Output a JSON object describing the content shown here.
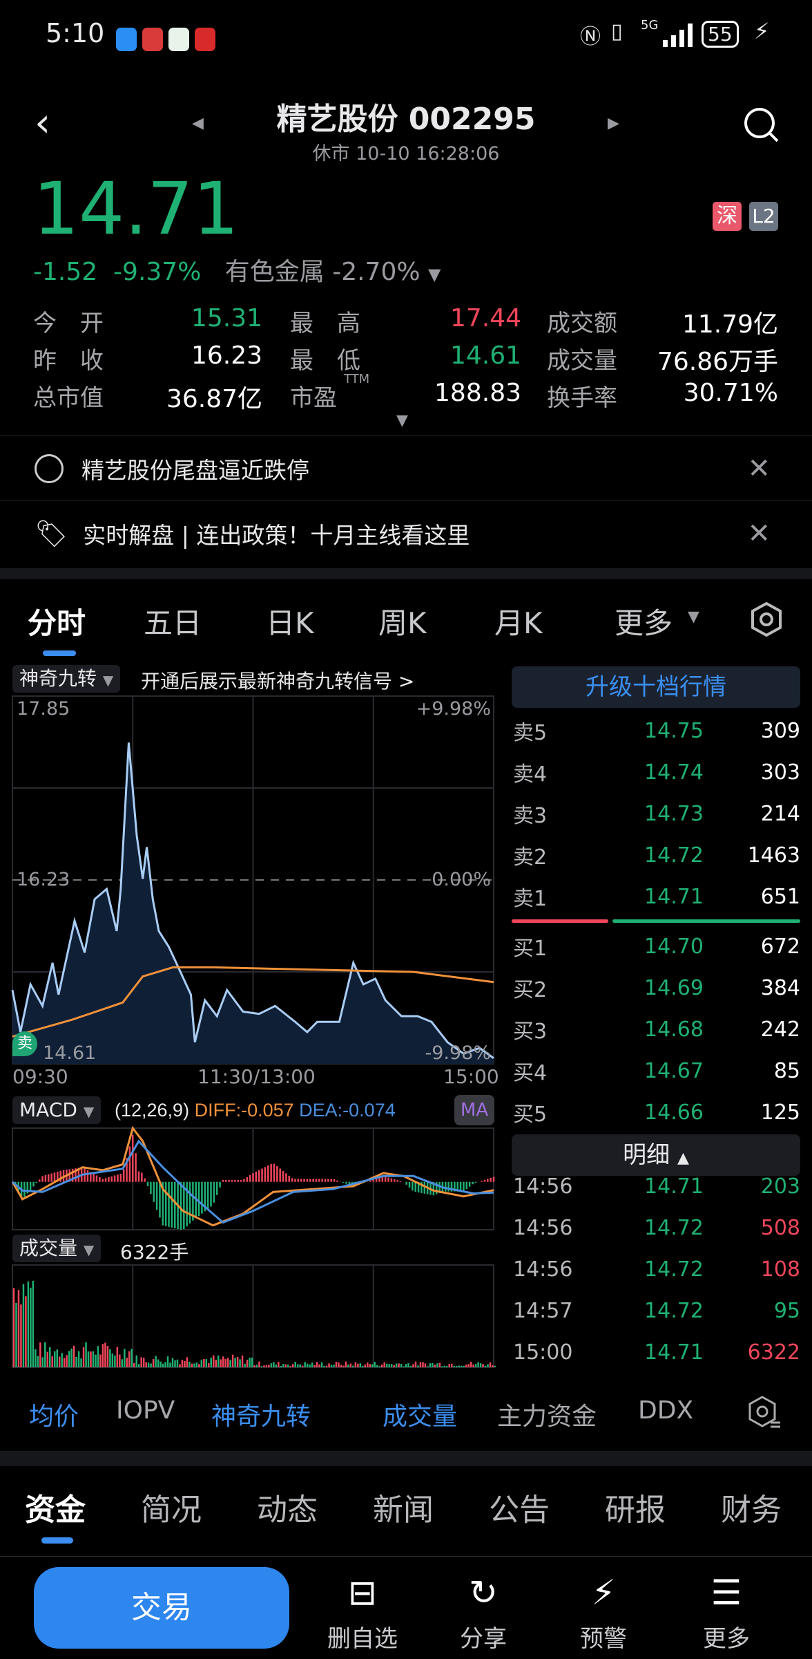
{
  "status_bar": {
    "time": "5:10",
    "battery": "55",
    "network": "5G"
  },
  "header": {
    "title": "精艺股份 002295",
    "subtitle": "休市 10-10 16:28:06",
    "exchange_badge": "深",
    "level_badge": "L2"
  },
  "quote": {
    "price": "14.71",
    "change": "-1.52",
    "change_pct": "-9.37%",
    "sector": "有色金属",
    "sector_pct": "-2.70%"
  },
  "stats": [
    [
      {
        "label": "今　开",
        "value": "15.31",
        "color": "green"
      },
      {
        "label": "最　高",
        "value": "17.44",
        "color": "red"
      },
      {
        "label": "成交额",
        "value": "11.79亿",
        "color": "white"
      }
    ],
    [
      {
        "label": "昨　收",
        "value": "16.23",
        "color": "white"
      },
      {
        "label": "最　低",
        "value": "14.61",
        "color": "green"
      },
      {
        "label": "成交量",
        "value": "76.86万手",
        "color": "white"
      }
    ],
    [
      {
        "label": "总市值",
        "value": "36.87亿",
        "color": "white"
      },
      {
        "label": "市盈",
        "sup": "TTM",
        "value": "188.83",
        "color": "white"
      },
      {
        "label": "换手率",
        "value": "30.71%",
        "color": "white"
      }
    ]
  ],
  "notices": [
    {
      "text": "精艺股份尾盘逼近跌停",
      "icon": "message-icon"
    },
    {
      "text": "实时解盘 | 连出政策！十月主线看这里",
      "icon": "tag-icon"
    }
  ],
  "chart_tabs": [
    "分时",
    "五日",
    "日K",
    "周K",
    "月K",
    "更多"
  ],
  "chart": {
    "indicator_label": "神奇九转",
    "promo": "开通后展示最新神奇九转信号 >",
    "y_top": "17.85",
    "y_mid": "16.23",
    "y_bot": "14.61",
    "pct_top": "+9.98%",
    "pct_mid": "0.00%",
    "pct_bot": "-9.98%",
    "x_labels": [
      "09:30",
      "11:30/13:00",
      "15:00"
    ],
    "sell_marker": "卖",
    "price_colors": {
      "line": "#a9cdf5",
      "avg": "#f0913a"
    },
    "price": [
      [
        0,
        15.26
      ],
      [
        4,
        14.89
      ],
      [
        9,
        15.31
      ],
      [
        15,
        15.12
      ],
      [
        20,
        15.5
      ],
      [
        23,
        15.22
      ],
      [
        31,
        15.87
      ],
      [
        36,
        15.59
      ],
      [
        41,
        16.06
      ],
      [
        47,
        16.15
      ],
      [
        52,
        15.78
      ],
      [
        54,
        16.15
      ],
      [
        58,
        17.44
      ],
      [
        62,
        16.62
      ],
      [
        65,
        16.24
      ],
      [
        67,
        16.52
      ],
      [
        70,
        16.06
      ],
      [
        73,
        15.78
      ],
      [
        78,
        15.64
      ],
      [
        83,
        15.45
      ],
      [
        89,
        15.22
      ],
      [
        91,
        14.8
      ],
      [
        96,
        15.17
      ],
      [
        102,
        15.03
      ],
      [
        107,
        15.26
      ],
      [
        115,
        15.07
      ],
      [
        123,
        15.05
      ],
      [
        131,
        15.12
      ],
      [
        141,
        14.98
      ],
      [
        147,
        14.89
      ],
      [
        152,
        14.98
      ],
      [
        163,
        14.98
      ],
      [
        170,
        15.5
      ],
      [
        175,
        15.31
      ],
      [
        181,
        15.36
      ],
      [
        186,
        15.17
      ],
      [
        194,
        15.03
      ],
      [
        202,
        15.03
      ],
      [
        209,
        14.98
      ],
      [
        217,
        14.8
      ],
      [
        225,
        14.7
      ],
      [
        233,
        14.75
      ],
      [
        240,
        14.66
      ]
    ],
    "avg": [
      [
        0,
        14.85
      ],
      [
        30,
        15.0
      ],
      [
        55,
        15.15
      ],
      [
        65,
        15.38
      ],
      [
        80,
        15.46
      ],
      [
        100,
        15.46
      ],
      [
        150,
        15.44
      ],
      [
        200,
        15.42
      ],
      [
        240,
        15.33
      ]
    ],
    "macd": {
      "label": "MACD",
      "params": "(12,26,9)",
      "diff_label": "DIFF:-0.057",
      "dea_label": "DEA:-0.074",
      "ma_label": "MA",
      "diff": [
        [
          0,
          0
        ],
        [
          5,
          -0.12
        ],
        [
          15,
          -0.05
        ],
        [
          25,
          0.03
        ],
        [
          35,
          0.1
        ],
        [
          45,
          0.08
        ],
        [
          55,
          0.12
        ],
        [
          60,
          0.37
        ],
        [
          65,
          0.28
        ],
        [
          75,
          -0.05
        ],
        [
          85,
          -0.2
        ],
        [
          100,
          -0.3
        ],
        [
          115,
          -0.22
        ],
        [
          130,
          -0.07
        ],
        [
          150,
          -0.05
        ],
        [
          170,
          -0.03
        ],
        [
          185,
          0.06
        ],
        [
          195,
          0.04
        ],
        [
          210,
          -0.06
        ],
        [
          225,
          -0.1
        ],
        [
          240,
          -0.057
        ]
      ],
      "dea": [
        [
          0,
          0
        ],
        [
          5,
          -0.06
        ],
        [
          15,
          -0.07
        ],
        [
          25,
          -0.01
        ],
        [
          35,
          0.05
        ],
        [
          45,
          0.07
        ],
        [
          55,
          0.09
        ],
        [
          63,
          0.28
        ],
        [
          75,
          0.1
        ],
        [
          90,
          -0.1
        ],
        [
          105,
          -0.28
        ],
        [
          120,
          -0.2
        ],
        [
          140,
          -0.07
        ],
        [
          160,
          -0.05
        ],
        [
          185,
          0.04
        ],
        [
          200,
          0.04
        ],
        [
          215,
          -0.04
        ],
        [
          230,
          -0.08
        ],
        [
          240,
          -0.074
        ]
      ]
    },
    "volume": {
      "label": "成交量",
      "value": "6322手"
    }
  },
  "order_book": {
    "upgrade": "升级十档行情",
    "asks": [
      {
        "label": "卖5",
        "price": "14.75",
        "vol": "309"
      },
      {
        "label": "卖4",
        "price": "14.74",
        "vol": "303"
      },
      {
        "label": "卖3",
        "price": "14.73",
        "vol": "214"
      },
      {
        "label": "卖2",
        "price": "14.72",
        "vol": "1463"
      },
      {
        "label": "卖1",
        "price": "14.71",
        "vol": "651"
      }
    ],
    "bids": [
      {
        "label": "买1",
        "price": "14.70",
        "vol": "672"
      },
      {
        "label": "买2",
        "price": "14.69",
        "vol": "384"
      },
      {
        "label": "买3",
        "price": "14.68",
        "vol": "242"
      },
      {
        "label": "买4",
        "price": "14.67",
        "vol": "85"
      },
      {
        "label": "买5",
        "price": "14.66",
        "vol": "125"
      }
    ],
    "detail_label": "明细",
    "ticks": [
      {
        "time": "14:56",
        "price": "14.71",
        "vol": "203",
        "dir": "green"
      },
      {
        "time": "14:56",
        "price": "14.72",
        "vol": "508",
        "dir": "red"
      },
      {
        "time": "14:56",
        "price": "14.72",
        "vol": "108",
        "dir": "red"
      },
      {
        "time": "14:57",
        "price": "14.72",
        "vol": "95",
        "dir": "green"
      },
      {
        "time": "15:00",
        "price": "14.71",
        "vol": "6322",
        "dir": "red"
      }
    ]
  },
  "indicator_tabs": [
    {
      "label": "均价",
      "active": true
    },
    {
      "label": "IOPV",
      "active": false
    },
    {
      "label": "神奇九转",
      "active": true
    },
    {
      "label": "成交量",
      "active": true
    },
    {
      "label": "主力资金",
      "active": false
    },
    {
      "label": "DDX",
      "active": false
    }
  ],
  "bottom_tabs": [
    "资金",
    "简况",
    "动态",
    "新闻",
    "公告",
    "研报",
    "财务"
  ],
  "actions": {
    "trade": "交易",
    "items": [
      {
        "label": "删自选",
        "icon": "remove-watchlist-icon"
      },
      {
        "label": "分享",
        "icon": "share-icon"
      },
      {
        "label": "预警",
        "icon": "alert-icon"
      },
      {
        "label": "更多",
        "icon": "more-icon"
      }
    ]
  }
}
